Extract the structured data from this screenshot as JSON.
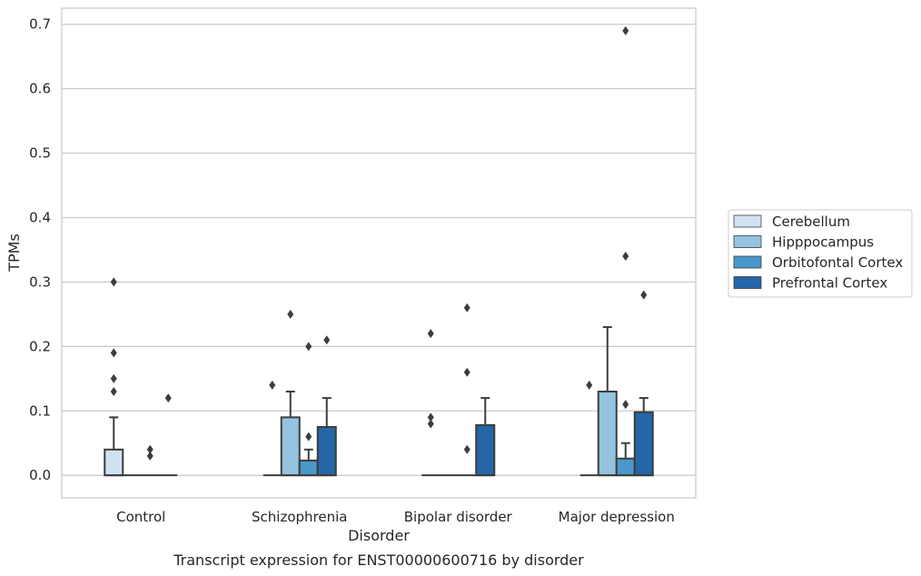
{
  "chart_data": {
    "type": "box",
    "xlabel": "Disorder",
    "ylabel": "TPMs",
    "caption": "Transcript expression for ENST00000600716 by disorder",
    "ylim": [
      -0.035,
      0.725
    ],
    "yticks": [
      "0.0",
      "0.1",
      "0.2",
      "0.3",
      "0.4",
      "0.5",
      "0.6",
      "0.7"
    ],
    "ytick_values": [
      0.0,
      0.1,
      0.2,
      0.3,
      0.4,
      0.5,
      0.6,
      0.7
    ],
    "grid": "horizontal",
    "legend_position": "right",
    "categories": [
      "Control",
      "Schizophrenia",
      "Bipolar disorder",
      "Major depression"
    ],
    "series": [
      {
        "name": "Cerebellum",
        "color": "#d0e1f2",
        "boxes": [
          {
            "q1": 0.0,
            "median": 0.0,
            "q3": 0.04,
            "whisker_low": 0.0,
            "whisker_high": 0.09,
            "outliers": [
              0.3,
              0.19,
              0.15,
              0.13
            ]
          },
          {
            "q1": 0.0,
            "median": 0.0,
            "q3": 0.0,
            "whisker_low": 0.0,
            "whisker_high": 0.0,
            "outliers": [
              0.14
            ]
          },
          {
            "q1": 0.0,
            "median": 0.0,
            "q3": 0.0,
            "whisker_low": 0.0,
            "whisker_high": 0.0,
            "outliers": [
              0.22,
              0.09,
              0.08
            ]
          },
          {
            "q1": 0.0,
            "median": 0.0,
            "q3": 0.0,
            "whisker_low": 0.0,
            "whisker_high": 0.0,
            "outliers": [
              0.14
            ]
          }
        ]
      },
      {
        "name": "Hipppocampus",
        "color": "#94c4df",
        "boxes": [
          {
            "q1": 0.0,
            "median": 0.0,
            "q3": 0.0,
            "whisker_low": 0.0,
            "whisker_high": 0.0,
            "outliers": []
          },
          {
            "q1": 0.0,
            "median": 0.0,
            "q3": 0.09,
            "whisker_low": 0.0,
            "whisker_high": 0.13,
            "outliers": [
              0.25
            ]
          },
          {
            "q1": 0.0,
            "median": 0.0,
            "q3": 0.0,
            "whisker_low": 0.0,
            "whisker_high": 0.0,
            "outliers": []
          },
          {
            "q1": 0.0,
            "median": 0.0,
            "q3": 0.13,
            "whisker_low": 0.0,
            "whisker_high": 0.23,
            "outliers": []
          }
        ]
      },
      {
        "name": "Orbitofontal Cortex",
        "color": "#4a98c9",
        "boxes": [
          {
            "q1": 0.0,
            "median": 0.0,
            "q3": 0.0,
            "whisker_low": 0.0,
            "whisker_high": 0.0,
            "outliers": [
              0.04,
              0.03
            ]
          },
          {
            "q1": 0.0,
            "median": 0.0,
            "q3": 0.023,
            "whisker_low": 0.0,
            "whisker_high": 0.04,
            "outliers": [
              0.2,
              0.06
            ]
          },
          {
            "q1": 0.0,
            "median": 0.0,
            "q3": 0.0,
            "whisker_low": 0.0,
            "whisker_high": 0.0,
            "outliers": [
              0.26,
              0.16,
              0.04
            ]
          },
          {
            "q1": 0.0,
            "median": 0.0,
            "q3": 0.026,
            "whisker_low": 0.0,
            "whisker_high": 0.05,
            "outliers": [
              0.69,
              0.34,
              0.11
            ]
          }
        ]
      },
      {
        "name": "Prefrontal Cortex",
        "color": "#2566a8",
        "boxes": [
          {
            "q1": 0.0,
            "median": 0.0,
            "q3": 0.0,
            "whisker_low": 0.0,
            "whisker_high": 0.0,
            "outliers": [
              0.12
            ]
          },
          {
            "q1": 0.0,
            "median": 0.0,
            "q3": 0.075,
            "whisker_low": 0.0,
            "whisker_high": 0.12,
            "outliers": [
              0.21
            ]
          },
          {
            "q1": 0.0,
            "median": 0.0,
            "q3": 0.078,
            "whisker_low": 0.0,
            "whisker_high": 0.12,
            "outliers": []
          },
          {
            "q1": 0.0,
            "median": 0.0,
            "q3": 0.098,
            "whisker_low": 0.0,
            "whisker_high": 0.12,
            "outliers": [
              0.28
            ]
          }
        ]
      }
    ]
  },
  "colors": {
    "grid": "#cccccc",
    "frame": "#cccccc",
    "line": "#3d3d3d",
    "outlier": "#3d3d3d"
  }
}
